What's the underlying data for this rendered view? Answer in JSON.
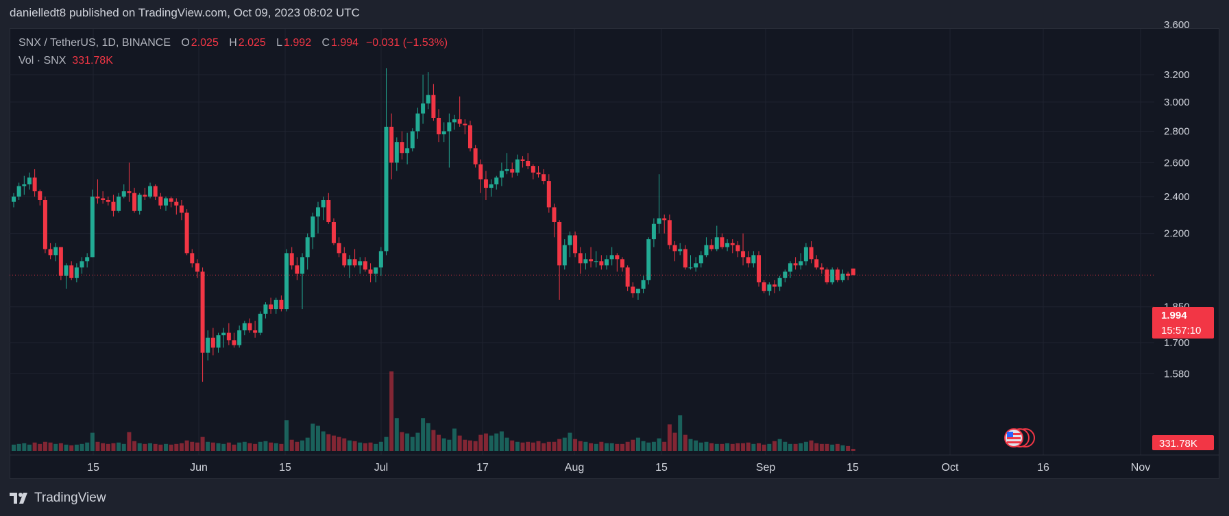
{
  "header": {
    "publish_line": "danielledt8 published on TradingView.com, Oct 09, 2023 08:02 UTC"
  },
  "legend": {
    "symbol": "SNX / TetherUS, 1D, BINANCE",
    "o_label": "O",
    "o_value": "2.025",
    "h_label": "H",
    "h_value": "2.025",
    "l_label": "L",
    "l_value": "1.992",
    "c_label": "C",
    "c_value": "1.994",
    "change": "−0.031 (−1.53%)",
    "vol_label": "Vol · SNX",
    "vol_value": "331.78K"
  },
  "price_badge": {
    "price": "1.994",
    "countdown": "15:57:10"
  },
  "volume_badge": "331.78K",
  "footer": {
    "brand": "TradingView"
  },
  "colors": {
    "up": "#22ab94",
    "down": "#f23645",
    "background": "#131722",
    "grid": "#1f2330",
    "text": "#b2b5be"
  },
  "chart_data": {
    "type": "candlestick",
    "interval": "1D",
    "y_scale": "log",
    "y_ticks": [
      "3.600",
      "3.200",
      "3.000",
      "2.800",
      "2.600",
      "2.400",
      "2.200",
      "1.850",
      "1.700",
      "1.580"
    ],
    "x_ticks": [
      "15",
      "Jun",
      "15",
      "Jul",
      "17",
      "Aug",
      "15",
      "Sep",
      "15",
      "Oct",
      "16",
      "Nov"
    ],
    "last_price": 1.994,
    "ohlc": [
      [
        2.37,
        2.42,
        2.34,
        2.4
      ],
      [
        2.4,
        2.48,
        2.38,
        2.46
      ],
      [
        2.46,
        2.52,
        2.41,
        2.47
      ],
      [
        2.47,
        2.54,
        2.44,
        2.51
      ],
      [
        2.51,
        2.56,
        2.4,
        2.43
      ],
      [
        2.43,
        2.44,
        2.35,
        2.38
      ],
      [
        2.38,
        2.4,
        2.1,
        2.12
      ],
      [
        2.12,
        2.15,
        2.07,
        2.09
      ],
      [
        2.09,
        2.15,
        2.06,
        2.13
      ],
      [
        2.13,
        2.13,
        1.97,
        1.99
      ],
      [
        1.99,
        2.05,
        1.93,
        2.04
      ],
      [
        2.04,
        2.06,
        1.97,
        1.98
      ],
      [
        1.98,
        2.05,
        1.96,
        2.03
      ],
      [
        2.03,
        2.08,
        2.0,
        2.06
      ],
      [
        2.06,
        2.1,
        2.03,
        2.08
      ],
      [
        2.08,
        2.44,
        2.08,
        2.4
      ],
      [
        2.4,
        2.5,
        2.36,
        2.39
      ],
      [
        2.39,
        2.43,
        2.36,
        2.38
      ],
      [
        2.38,
        2.4,
        2.35,
        2.37
      ],
      [
        2.37,
        2.41,
        2.29,
        2.32
      ],
      [
        2.32,
        2.42,
        2.31,
        2.4
      ],
      [
        2.4,
        2.47,
        2.39,
        2.43
      ],
      [
        2.43,
        2.6,
        2.37,
        2.42
      ],
      [
        2.42,
        2.45,
        2.31,
        2.32
      ],
      [
        2.32,
        2.42,
        2.3,
        2.41
      ],
      [
        2.41,
        2.45,
        2.38,
        2.4
      ],
      [
        2.4,
        2.48,
        2.39,
        2.46
      ],
      [
        2.46,
        2.47,
        2.38,
        2.4
      ],
      [
        2.4,
        2.42,
        2.33,
        2.35
      ],
      [
        2.35,
        2.4,
        2.32,
        2.39
      ],
      [
        2.39,
        2.4,
        2.34,
        2.37
      ],
      [
        2.37,
        2.39,
        2.3,
        2.35
      ],
      [
        2.35,
        2.38,
        2.27,
        2.31
      ],
      [
        2.31,
        2.33,
        2.09,
        2.1
      ],
      [
        2.1,
        2.12,
        2.03,
        2.05
      ],
      [
        2.05,
        2.07,
        1.98,
        2.01
      ],
      [
        2.01,
        2.03,
        1.55,
        1.66
      ],
      [
        1.66,
        1.75,
        1.63,
        1.72
      ],
      [
        1.72,
        1.76,
        1.65,
        1.68
      ],
      [
        1.68,
        1.74,
        1.66,
        1.73
      ],
      [
        1.73,
        1.76,
        1.68,
        1.74
      ],
      [
        1.74,
        1.78,
        1.69,
        1.71
      ],
      [
        1.71,
        1.74,
        1.68,
        1.69
      ],
      [
        1.69,
        1.77,
        1.68,
        1.75
      ],
      [
        1.75,
        1.79,
        1.73,
        1.78
      ],
      [
        1.78,
        1.8,
        1.74,
        1.75
      ],
      [
        1.75,
        1.79,
        1.72,
        1.74
      ],
      [
        1.74,
        1.83,
        1.73,
        1.82
      ],
      [
        1.82,
        1.87,
        1.8,
        1.86
      ],
      [
        1.86,
        1.89,
        1.82,
        1.84
      ],
      [
        1.84,
        1.89,
        1.82,
        1.88
      ],
      [
        1.88,
        1.9,
        1.83,
        1.84
      ],
      [
        1.84,
        2.12,
        1.83,
        2.1
      ],
      [
        2.1,
        2.13,
        2.02,
        2.04
      ],
      [
        2.04,
        2.08,
        1.97,
        2.0
      ],
      [
        2.0,
        2.1,
        1.84,
        2.08
      ],
      [
        2.08,
        2.2,
        2.02,
        2.18
      ],
      [
        2.18,
        2.31,
        2.12,
        2.29
      ],
      [
        2.29,
        2.37,
        2.2,
        2.34
      ],
      [
        2.34,
        2.4,
        2.27,
        2.38
      ],
      [
        2.38,
        2.42,
        2.25,
        2.26
      ],
      [
        2.26,
        2.28,
        2.14,
        2.15
      ],
      [
        2.15,
        2.18,
        2.08,
        2.1
      ],
      [
        2.1,
        2.13,
        2.03,
        2.04
      ],
      [
        2.04,
        2.09,
        1.98,
        2.07
      ],
      [
        2.07,
        2.12,
        2.03,
        2.04
      ],
      [
        2.04,
        2.08,
        2.0,
        2.06
      ],
      [
        2.06,
        2.08,
        2.01,
        2.02
      ],
      [
        2.02,
        2.05,
        1.96,
        2.0
      ],
      [
        2.0,
        2.03,
        1.96,
        2.03
      ],
      [
        2.03,
        2.13,
        1.99,
        2.11
      ],
      [
        2.11,
        3.25,
        2.09,
        2.83
      ],
      [
        2.83,
        2.92,
        2.5,
        2.6
      ],
      [
        2.6,
        2.76,
        2.55,
        2.73
      ],
      [
        2.73,
        2.8,
        2.62,
        2.66
      ],
      [
        2.66,
        2.79,
        2.59,
        2.69
      ],
      [
        2.69,
        2.82,
        2.67,
        2.8
      ],
      [
        2.8,
        2.96,
        2.75,
        2.92
      ],
      [
        2.92,
        3.2,
        2.85,
        2.99
      ],
      [
        2.99,
        3.22,
        2.95,
        3.05
      ],
      [
        3.05,
        3.13,
        2.87,
        2.89
      ],
      [
        2.89,
        2.95,
        2.73,
        2.78
      ],
      [
        2.78,
        2.86,
        2.73,
        2.8
      ],
      [
        2.8,
        2.92,
        2.57,
        2.86
      ],
      [
        2.86,
        2.91,
        2.81,
        2.88
      ],
      [
        2.88,
        3.04,
        2.83,
        2.85
      ],
      [
        2.85,
        2.88,
        2.78,
        2.84
      ],
      [
        2.84,
        2.87,
        2.67,
        2.69
      ],
      [
        2.69,
        2.71,
        2.57,
        2.59
      ],
      [
        2.59,
        2.62,
        2.42,
        2.5
      ],
      [
        2.5,
        2.55,
        2.38,
        2.45
      ],
      [
        2.45,
        2.5,
        2.4,
        2.47
      ],
      [
        2.47,
        2.52,
        2.44,
        2.51
      ],
      [
        2.51,
        2.6,
        2.46,
        2.55
      ],
      [
        2.55,
        2.66,
        2.53,
        2.56
      ],
      [
        2.56,
        2.6,
        2.51,
        2.54
      ],
      [
        2.54,
        2.65,
        2.52,
        2.62
      ],
      [
        2.62,
        2.64,
        2.57,
        2.61
      ],
      [
        2.61,
        2.66,
        2.56,
        2.58
      ],
      [
        2.58,
        2.59,
        2.5,
        2.54
      ],
      [
        2.54,
        2.58,
        2.51,
        2.53
      ],
      [
        2.53,
        2.56,
        2.47,
        2.49
      ],
      [
        2.49,
        2.53,
        2.31,
        2.34
      ],
      [
        2.34,
        2.36,
        2.18,
        2.26
      ],
      [
        2.26,
        2.27,
        1.88,
        2.04
      ],
      [
        2.04,
        2.17,
        2.02,
        2.14
      ],
      [
        2.14,
        2.21,
        2.08,
        2.19
      ],
      [
        2.19,
        2.21,
        2.08,
        2.1
      ],
      [
        2.1,
        2.13,
        2.0,
        2.05
      ],
      [
        2.05,
        2.1,
        2.02,
        2.07
      ],
      [
        2.07,
        2.13,
        2.03,
        2.06
      ],
      [
        2.06,
        2.11,
        2.03,
        2.06
      ],
      [
        2.06,
        2.09,
        2.02,
        2.04
      ],
      [
        2.04,
        2.09,
        2.02,
        2.07
      ],
      [
        2.07,
        2.13,
        2.04,
        2.09
      ],
      [
        2.09,
        2.1,
        2.01,
        2.07
      ],
      [
        2.07,
        2.08,
        2.01,
        2.03
      ],
      [
        2.03,
        2.04,
        1.92,
        1.94
      ],
      [
        1.94,
        1.96,
        1.89,
        1.91
      ],
      [
        1.91,
        1.93,
        1.88,
        1.93
      ],
      [
        1.93,
        1.99,
        1.91,
        1.97
      ],
      [
        1.97,
        2.18,
        1.95,
        2.17
      ],
      [
        2.17,
        2.28,
        2.13,
        2.25
      ],
      [
        2.25,
        2.53,
        2.2,
        2.28
      ],
      [
        2.28,
        2.3,
        2.2,
        2.27
      ],
      [
        2.27,
        2.3,
        2.12,
        2.14
      ],
      [
        2.14,
        2.16,
        2.06,
        2.11
      ],
      [
        2.11,
        2.15,
        2.09,
        2.12
      ],
      [
        2.12,
        2.14,
        2.02,
        2.03
      ],
      [
        2.03,
        2.09,
        2.02,
        2.03
      ],
      [
        2.03,
        2.08,
        2.01,
        2.05
      ],
      [
        2.05,
        2.11,
        2.03,
        2.09
      ],
      [
        2.09,
        2.18,
        2.08,
        2.14
      ],
      [
        2.14,
        2.17,
        2.11,
        2.12
      ],
      [
        2.12,
        2.24,
        2.11,
        2.18
      ],
      [
        2.18,
        2.2,
        2.12,
        2.13
      ],
      [
        2.13,
        2.17,
        2.11,
        2.15
      ],
      [
        2.15,
        2.17,
        2.1,
        2.14
      ],
      [
        2.14,
        2.16,
        2.08,
        2.11
      ],
      [
        2.11,
        2.2,
        2.04,
        2.08
      ],
      [
        2.08,
        2.11,
        2.03,
        2.05
      ],
      [
        2.05,
        2.11,
        2.03,
        2.09
      ],
      [
        2.09,
        2.11,
        1.94,
        1.96
      ],
      [
        1.96,
        1.97,
        1.91,
        1.92
      ],
      [
        1.92,
        1.96,
        1.9,
        1.95
      ],
      [
        1.95,
        1.97,
        1.91,
        1.94
      ],
      [
        1.94,
        1.99,
        1.92,
        1.98
      ],
      [
        1.98,
        2.02,
        1.96,
        2.01
      ],
      [
        2.01,
        2.06,
        1.98,
        2.05
      ],
      [
        2.05,
        2.08,
        2.02,
        2.04
      ],
      [
        2.04,
        2.1,
        2.02,
        2.06
      ],
      [
        2.06,
        2.15,
        2.04,
        2.13
      ],
      [
        2.13,
        2.16,
        2.05,
        2.07
      ],
      [
        2.07,
        2.09,
        2.02,
        2.03
      ],
      [
        2.03,
        2.05,
        2.0,
        2.02
      ],
      [
        2.02,
        2.03,
        1.95,
        1.96
      ],
      [
        1.96,
        2.03,
        1.95,
        2.02
      ],
      [
        2.02,
        2.03,
        1.96,
        1.97
      ],
      [
        1.97,
        2.02,
        1.96,
        2.0
      ],
      [
        2.0,
        2.01,
        1.97,
        1.99
      ],
      [
        2.025,
        2.025,
        1.992,
        1.994
      ]
    ],
    "volume": [
      0.9,
      1.0,
      1.1,
      0.9,
      1.2,
      1.0,
      1.3,
      1.2,
      1.0,
      1.1,
      0.9,
      0.8,
      0.9,
      1.0,
      1.2,
      2.6,
      1.3,
      1.1,
      1.0,
      1.1,
      1.2,
      1.0,
      2.7,
      1.4,
      1.1,
      1.0,
      1.1,
      1.0,
      0.9,
      1.0,
      0.9,
      1.0,
      1.1,
      1.5,
      1.3,
      1.2,
      2.0,
      1.3,
      1.2,
      1.1,
      1.0,
      1.2,
      0.9,
      1.2,
      1.3,
      1.1,
      1.0,
      1.3,
      1.4,
      1.2,
      1.1,
      1.0,
      4.4,
      1.6,
      1.3,
      1.5,
      1.9,
      3.9,
      3.6,
      2.8,
      2.4,
      2.2,
      2.0,
      1.8,
      1.5,
      1.4,
      1.2,
      1.1,
      1.2,
      1.0,
      1.3,
      2.0,
      11.4,
      4.7,
      2.7,
      2.5,
      2.0,
      2.6,
      4.7,
      4.0,
      3.0,
      2.3,
      1.8,
      1.6,
      3.2,
      2.2,
      1.6,
      1.5,
      1.4,
      2.3,
      2.5,
      2.2,
      2.5,
      2.8,
      1.9,
      1.5,
      1.3,
      1.2,
      1.3,
      1.2,
      1.4,
      1.1,
      1.3,
      1.3,
      1.7,
      1.9,
      2.6,
      1.7,
      1.4,
      1.3,
      1.1,
      1.0,
      1.3,
      1.1,
      1.1,
      1.0,
      1.0,
      1.3,
      1.6,
      1.9,
      1.4,
      1.2,
      1.3,
      1.8,
      1.3,
      3.8,
      2.6,
      5.1,
      2.3,
      1.7,
      1.5,
      1.2,
      1.3,
      1.1,
      1.0,
      1.0,
      1.1,
      1.0,
      1.1,
      1.1,
      1.2,
      1.0,
      1.1,
      0.9,
      1.0,
      1.4,
      1.7,
      1.3,
      1.0,
      1.0,
      1.1,
      1.3,
      1.5,
      1.1,
      1.0,
      1.0,
      0.9,
      1.0,
      0.8,
      0.7,
      0.3
    ]
  }
}
